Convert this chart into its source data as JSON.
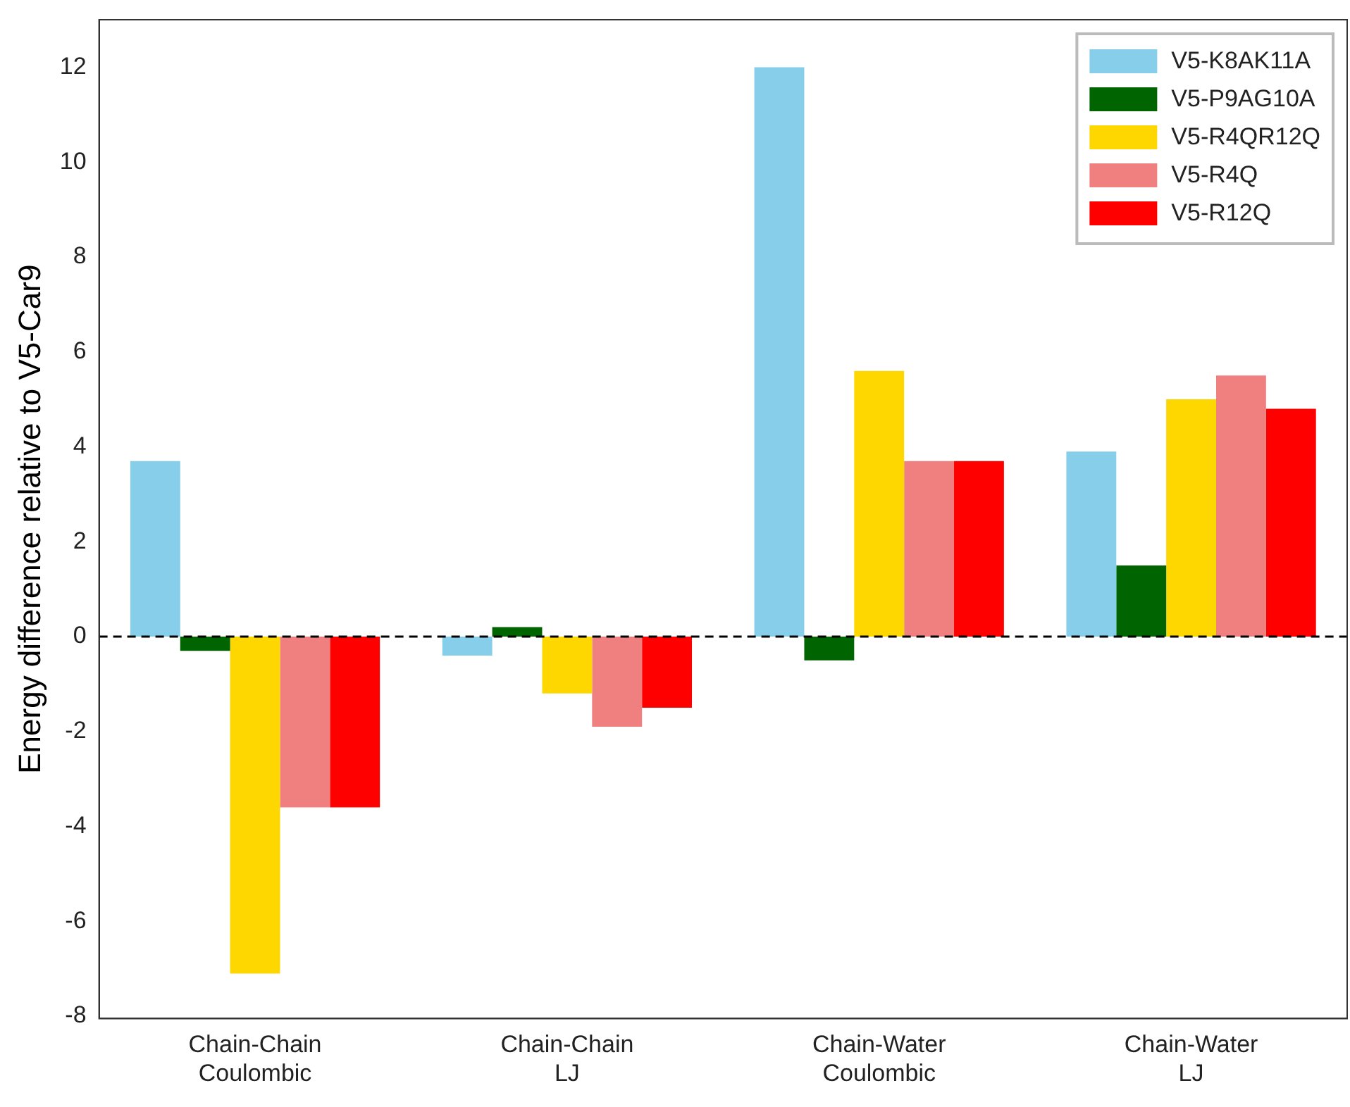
{
  "chart_data": {
    "type": "bar",
    "ylabel": "Energy difference relative to V5-Car9",
    "categories": [
      "Chain-Chain\nCoulombic",
      "Chain-Chain\nLJ",
      "Chain-Water\nCoulombic",
      "Chain-Water\nLJ"
    ],
    "series": [
      {
        "name": "V5-K8AK11A",
        "color": "#87ceeb",
        "values": [
          3.7,
          -0.4,
          12.0,
          3.9
        ]
      },
      {
        "name": "V5-P9AG10A",
        "color": "#006400",
        "values": [
          -0.3,
          0.2,
          -0.5,
          1.5
        ]
      },
      {
        "name": "V5-R4QR12Q",
        "color": "#ffd700",
        "values": [
          -7.1,
          -1.2,
          5.6,
          5.0
        ]
      },
      {
        "name": "V5-R4Q",
        "color": "#f08080",
        "values": [
          -3.6,
          -1.9,
          3.7,
          5.5
        ]
      },
      {
        "name": "V5-R12Q",
        "color": "#ff0000",
        "values": [
          -3.6,
          -1.5,
          3.7,
          4.8
        ]
      }
    ],
    "ylim": [
      -8.05,
      13.0
    ],
    "yticks": [
      -8,
      -6,
      -4,
      -2,
      0,
      2,
      4,
      6,
      8,
      10,
      12
    ],
    "ref_lines": [
      {
        "axis": "y",
        "value": 0,
        "color": "#000000",
        "line_style": "dashed"
      }
    ],
    "grid": false,
    "legend": "top right"
  }
}
